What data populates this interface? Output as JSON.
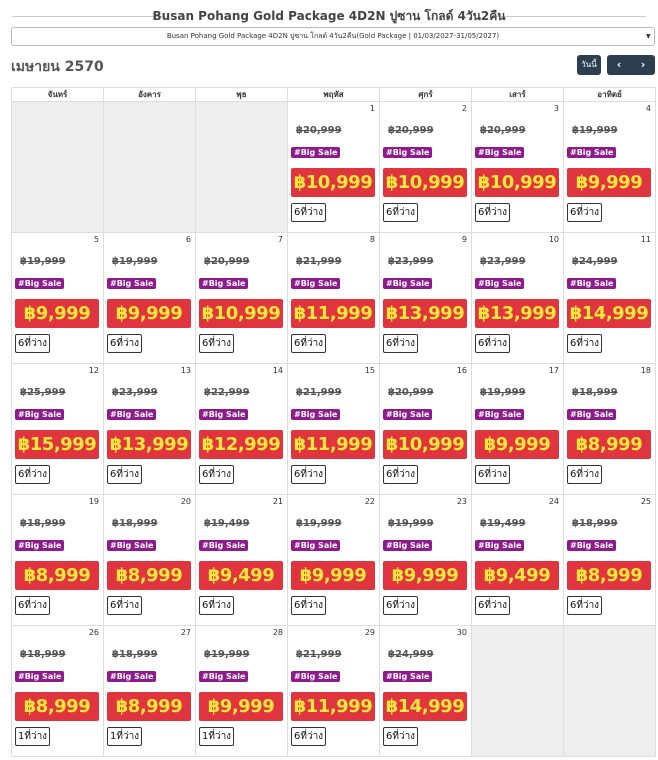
{
  "header": {
    "title": "Busan Pohang Gold Package 4D2N ปูซาน โกลด์ 4วัน2คืน",
    "select": "Busan Pohang Gold Package 4D2N ปูซาน โกลด์ 4วัน2คืน(Gold Package | 01/03/2027-31/05/2027)",
    "month": "เมษายน 2570",
    "today_button": "วันนี้"
  },
  "calendar": {
    "weekdays": [
      "จันทร์",
      "อังคาร",
      "พุธ",
      "พฤหัส",
      "ศุกร์",
      "เสาร์",
      "อาทิตย์"
    ],
    "badge": "#Big Sale",
    "weeks": [
      [
        null,
        null,
        null,
        {
          "day": 1,
          "old_price": "฿20,999",
          "price": "฿10,999",
          "seats": "6ที่ว่าง"
        },
        {
          "day": 2,
          "old_price": "฿20,999",
          "price": "฿10,999",
          "seats": "6ที่ว่าง"
        },
        {
          "day": 3,
          "old_price": "฿20,999",
          "price": "฿10,999",
          "seats": "6ที่ว่าง"
        },
        {
          "day": 4,
          "old_price": "฿19,999",
          "price": "฿9,999",
          "seats": "6ที่ว่าง"
        }
      ],
      [
        {
          "day": 5,
          "old_price": "฿19,999",
          "price": "฿9,999",
          "seats": "6ที่ว่าง"
        },
        {
          "day": 6,
          "old_price": "฿19,999",
          "price": "฿9,999",
          "seats": "6ที่ว่าง"
        },
        {
          "day": 7,
          "old_price": "฿20,999",
          "price": "฿10,999",
          "seats": "6ที่ว่าง"
        },
        {
          "day": 8,
          "old_price": "฿21,999",
          "price": "฿11,999",
          "seats": "6ที่ว่าง"
        },
        {
          "day": 9,
          "old_price": "฿23,999",
          "price": "฿13,999",
          "seats": "6ที่ว่าง"
        },
        {
          "day": 10,
          "old_price": "฿23,999",
          "price": "฿13,999",
          "seats": "6ที่ว่าง"
        },
        {
          "day": 11,
          "old_price": "฿24,999",
          "price": "฿14,999",
          "seats": "6ที่ว่าง"
        }
      ],
      [
        {
          "day": 12,
          "old_price": "฿25,999",
          "price": "฿15,999",
          "seats": "6ที่ว่าง"
        },
        {
          "day": 13,
          "old_price": "฿23,999",
          "price": "฿13,999",
          "seats": "6ที่ว่าง"
        },
        {
          "day": 14,
          "old_price": "฿22,999",
          "price": "฿12,999",
          "seats": "6ที่ว่าง"
        },
        {
          "day": 15,
          "old_price": "฿21,999",
          "price": "฿11,999",
          "seats": "6ที่ว่าง"
        },
        {
          "day": 16,
          "old_price": "฿20,999",
          "price": "฿10,999",
          "seats": "6ที่ว่าง"
        },
        {
          "day": 17,
          "old_price": "฿19,999",
          "price": "฿9,999",
          "seats": "6ที่ว่าง"
        },
        {
          "day": 18,
          "old_price": "฿18,999",
          "price": "฿8,999",
          "seats": "6ที่ว่าง"
        }
      ],
      [
        {
          "day": 19,
          "old_price": "฿18,999",
          "price": "฿8,999",
          "seats": "6ที่ว่าง"
        },
        {
          "day": 20,
          "old_price": "฿18,999",
          "price": "฿8,999",
          "seats": "6ที่ว่าง"
        },
        {
          "day": 21,
          "old_price": "฿19,499",
          "price": "฿9,499",
          "seats": "6ที่ว่าง"
        },
        {
          "day": 22,
          "old_price": "฿19,999",
          "price": "฿9,999",
          "seats": "6ที่ว่าง"
        },
        {
          "day": 23,
          "old_price": "฿19,999",
          "price": "฿9,999",
          "seats": "6ที่ว่าง"
        },
        {
          "day": 24,
          "old_price": "฿19,499",
          "price": "฿9,499",
          "seats": "6ที่ว่าง"
        },
        {
          "day": 25,
          "old_price": "฿18,999",
          "price": "฿8,999",
          "seats": "6ที่ว่าง"
        }
      ],
      [
        {
          "day": 26,
          "old_price": "฿18,999",
          "price": "฿8,999",
          "seats": "1ที่ว่าง"
        },
        {
          "day": 27,
          "old_price": "฿18,999",
          "price": "฿8,999",
          "seats": "1ที่ว่าง"
        },
        {
          "day": 28,
          "old_price": "฿19,999",
          "price": "฿9,999",
          "seats": "1ที่ว่าง"
        },
        {
          "day": 29,
          "old_price": "฿21,999",
          "price": "฿11,999",
          "seats": "6ที่ว่าง"
        },
        {
          "day": 30,
          "old_price": "฿24,999",
          "price": "฿14,999",
          "seats": "6ที่ว่าง"
        },
        null,
        null
      ]
    ]
  }
}
